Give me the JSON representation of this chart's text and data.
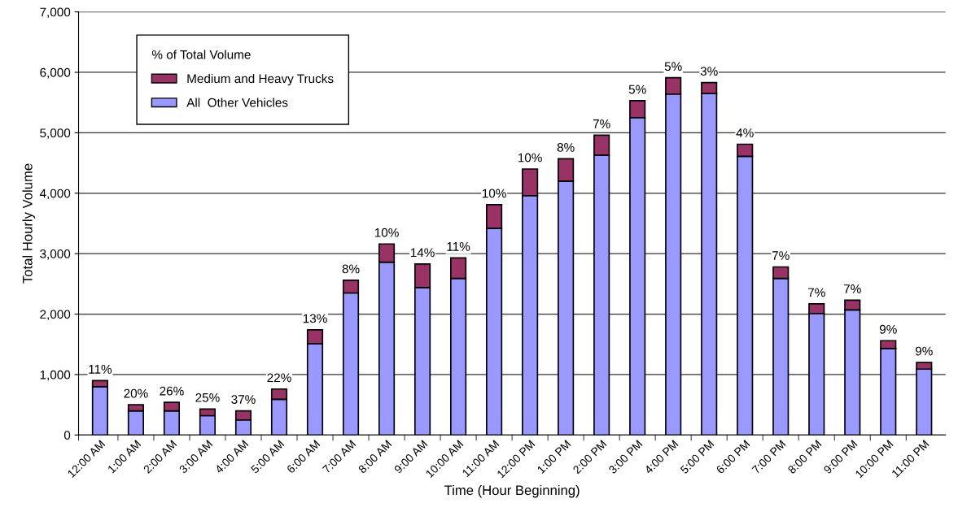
{
  "chart_data": {
    "type": "bar",
    "stacked": true,
    "xlabel": "Time (Hour Beginning)",
    "ylabel": "Total Hourly Volume",
    "legend_title": "% of Total Volume",
    "legend": "top left",
    "grid": "y",
    "categories": [
      "12:00 AM",
      "1:00 AM",
      "2:00 AM",
      "3:00 AM",
      "4:00 AM",
      "5:00 AM",
      "6:00 AM",
      "7:00 AM",
      "8:00 AM",
      "9:00 AM",
      "10:00 AM",
      "11:00 AM",
      "12:00 PM",
      "1:00 PM",
      "2:00 PM",
      "3:00 PM",
      "4:00 PM",
      "5:00 PM",
      "6:00 PM",
      "7:00 PM",
      "8:00 PM",
      "9:00 PM",
      "10:00 PM",
      "11:00 PM"
    ],
    "series": [
      {
        "name": "All  Other Vehicles",
        "color": "#9999ff",
        "values": [
          800,
          400,
          400,
          320,
          250,
          590,
          1510,
          2350,
          2860,
          2440,
          2590,
          3420,
          3960,
          4200,
          4630,
          5250,
          5640,
          5650,
          4610,
          2590,
          2010,
          2070,
          1430,
          1090
        ]
      },
      {
        "name": "Medium and Heavy Trucks",
        "color": "#993366",
        "values": [
          100,
          100,
          140,
          110,
          150,
          170,
          230,
          210,
          300,
          390,
          340,
          390,
          440,
          370,
          330,
          280,
          270,
          180,
          200,
          190,
          160,
          160,
          130,
          110
        ]
      }
    ],
    "annotations": [
      {
        "text": "11%",
        "x": "12:00 AM",
        "y": 900
      },
      {
        "text": "20%",
        "x": "1:00 AM",
        "y": 500
      },
      {
        "text": "26%",
        "x": "2:00 AM",
        "y": 540
      },
      {
        "text": "25%",
        "x": "3:00 AM",
        "y": 430
      },
      {
        "text": "37%",
        "x": "4:00 AM",
        "y": 400
      },
      {
        "text": "22%",
        "x": "5:00 AM",
        "y": 760
      },
      {
        "text": "13%",
        "x": "6:00 AM",
        "y": 1740
      },
      {
        "text": "8%",
        "x": "7:00 AM",
        "y": 2560
      },
      {
        "text": "10%",
        "x": "8:00 AM",
        "y": 3160
      },
      {
        "text": "14%",
        "x": "9:00 AM",
        "y": 2830
      },
      {
        "text": "11%",
        "x": "10:00 AM",
        "y": 2930
      },
      {
        "text": "10%",
        "x": "11:00 AM",
        "y": 3810
      },
      {
        "text": "10%",
        "x": "12:00 PM",
        "y": 4400
      },
      {
        "text": "8%",
        "x": "1:00 PM",
        "y": 4570
      },
      {
        "text": "7%",
        "x": "2:00 PM",
        "y": 4960
      },
      {
        "text": "5%",
        "x": "3:00 PM",
        "y": 5530
      },
      {
        "text": "5%",
        "x": "4:00 PM",
        "y": 5910
      },
      {
        "text": "3%",
        "x": "5:00 PM",
        "y": 5830
      },
      {
        "text": "4%",
        "x": "6:00 PM",
        "y": 4810
      },
      {
        "text": "7%",
        "x": "7:00 PM",
        "y": 2780
      },
      {
        "text": "7%",
        "x": "8:00 PM",
        "y": 2170
      },
      {
        "text": "7%",
        "x": "9:00 PM",
        "y": 2230
      },
      {
        "text": "9%",
        "x": "10:00 PM",
        "y": 1560
      },
      {
        "text": "9%",
        "x": "11:00 PM",
        "y": 1200
      }
    ],
    "ylim": [
      0,
      7000
    ],
    "yticks": [
      0,
      {
        "value": 1000,
        "label": "1,000"
      },
      {
        "value": 2000,
        "label": "2,000"
      },
      {
        "value": 3000,
        "label": "3,000"
      },
      {
        "value": 4000,
        "label": "4,000"
      },
      {
        "value": 5000,
        "label": "5,000"
      },
      {
        "value": 6000,
        "label": "6,000"
      },
      {
        "value": 7000,
        "label": "7,000"
      }
    ]
  }
}
